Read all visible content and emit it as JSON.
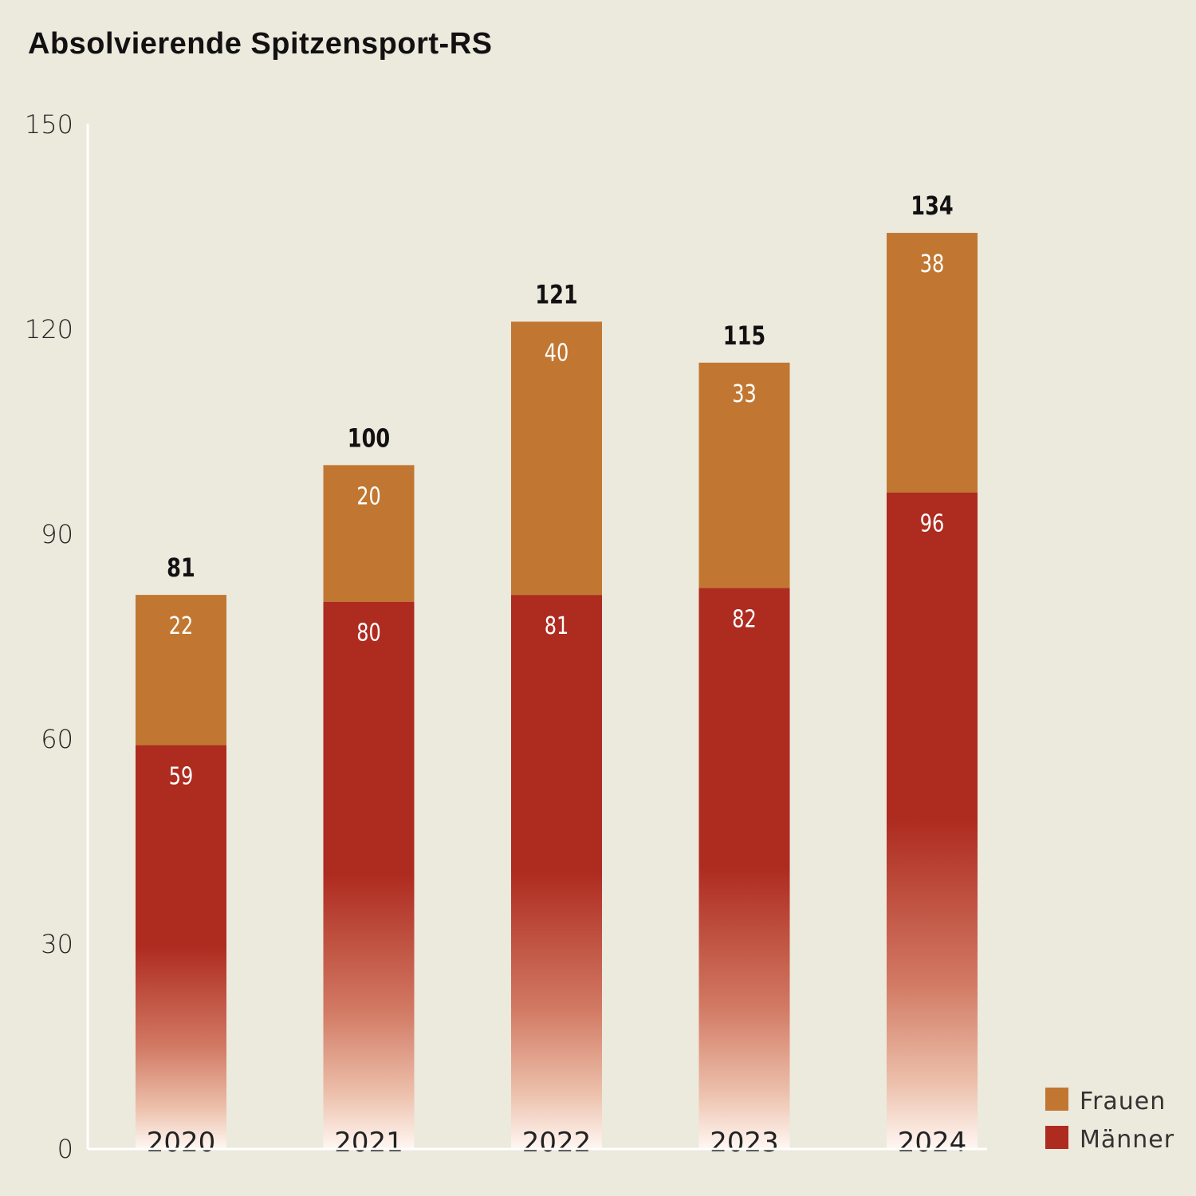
{
  "chart_data": {
    "type": "bar",
    "stacked": true,
    "title": "Absolvierende Spitzensport-RS",
    "xlabel": "",
    "ylabel": "",
    "categories": [
      "2020",
      "2021",
      "2022",
      "2023",
      "2024"
    ],
    "series": [
      {
        "name": "Männer",
        "values": [
          59,
          80,
          81,
          82,
          96
        ],
        "color": "#ae2b20"
      },
      {
        "name": "Frauen",
        "values": [
          22,
          20,
          40,
          33,
          38
        ],
        "color": "#c17731"
      }
    ],
    "totals": [
      81,
      100,
      121,
      115,
      134
    ],
    "ylim": [
      0,
      150
    ],
    "yticks": [
      0,
      30,
      60,
      90,
      120,
      150
    ],
    "grid": false,
    "legend_position": "bottom-right",
    "background": "#ece9dd"
  }
}
